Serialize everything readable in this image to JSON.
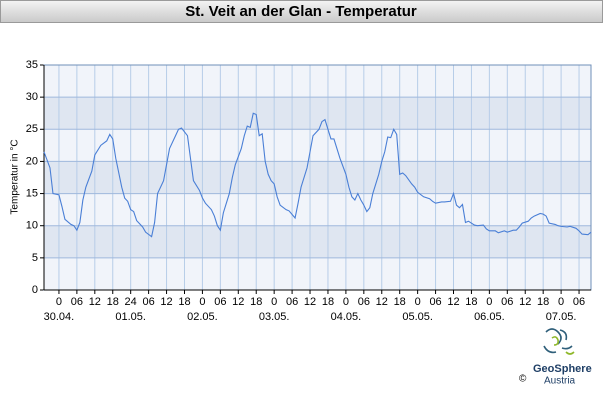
{
  "chart_data": {
    "type": "line",
    "title": "St. Veit an der Glan - Temperatur",
    "y_label": "Temperatur in °C",
    "ylim": [
      0,
      35
    ],
    "yticks": [
      0,
      5,
      10,
      15,
      20,
      25,
      30,
      35
    ],
    "xlim": [
      -5,
      178
    ],
    "xticks": [
      0,
      {
        "value": 6,
        "label": "06"
      },
      12,
      18,
      24,
      {
        "value": 30,
        "label": "06"
      },
      {
        "value": 36,
        "label": "12"
      },
      {
        "value": 42,
        "label": "18"
      },
      {
        "value": 48,
        "label": "0"
      },
      {
        "value": 54,
        "label": "06"
      },
      {
        "value": 60,
        "label": "12"
      },
      {
        "value": 66,
        "label": "18"
      },
      {
        "value": 72,
        "label": "0"
      },
      {
        "value": 78,
        "label": "06"
      },
      {
        "value": 84,
        "label": "12"
      },
      {
        "value": 90,
        "label": "18"
      },
      {
        "value": 96,
        "label": "0"
      },
      {
        "value": 102,
        "label": "06"
      },
      {
        "value": 108,
        "label": "12"
      },
      {
        "value": 114,
        "label": "18"
      },
      {
        "value": 120,
        "label": "0"
      },
      {
        "value": 126,
        "label": "06"
      },
      {
        "value": 132,
        "label": "12"
      },
      {
        "value": 138,
        "label": "18"
      },
      {
        "value": 144,
        "label": "0"
      },
      {
        "value": 150,
        "label": "06"
      },
      {
        "value": 156,
        "label": "12"
      },
      {
        "value": 162,
        "label": "18"
      },
      {
        "value": 168,
        "label": "0"
      },
      {
        "value": 174,
        "label": "06"
      }
    ],
    "x_date_labels": [
      {
        "value": 0,
        "label": "30.04."
      },
      {
        "value": 24,
        "label": "01.05."
      },
      {
        "value": 48,
        "label": "02.05."
      },
      {
        "value": 72,
        "label": "03.05."
      },
      {
        "value": 96,
        "label": "04.05."
      },
      {
        "value": 120,
        "label": "05.05."
      },
      {
        "value": 144,
        "label": "06.05."
      },
      {
        "value": 168,
        "label": "07.05."
      }
    ],
    "grid": true,
    "series": [
      {
        "color": "#4a7fd6",
        "x": [
          -5,
          -3,
          -2,
          0,
          1,
          2,
          4,
          5,
          6,
          7,
          8,
          9,
          11,
          12,
          14,
          16,
          17,
          18,
          19,
          21,
          22,
          23,
          24,
          25,
          26,
          28,
          29,
          31,
          32,
          33,
          35,
          36,
          37,
          39,
          40,
          41,
          43,
          44,
          45,
          47,
          48,
          49,
          51,
          52,
          53,
          54,
          55,
          57,
          58,
          59,
          61,
          62,
          63,
          64,
          65,
          66,
          67,
          68,
          69,
          70,
          71,
          72,
          73,
          74,
          76,
          77,
          79,
          80,
          81,
          83,
          84,
          85,
          87,
          88,
          89,
          90,
          91,
          92,
          93,
          94,
          96,
          97,
          98,
          99,
          100,
          101,
          102,
          103,
          104,
          105,
          107,
          108,
          109,
          110,
          111,
          112,
          113,
          114,
          115,
          116,
          118,
          119,
          120,
          122,
          124,
          125,
          126,
          128,
          129,
          131,
          132,
          133,
          134,
          135,
          136,
          137,
          139,
          140,
          142,
          143,
          144,
          146,
          147,
          149,
          150,
          152,
          153,
          154,
          155,
          157,
          158,
          159,
          161,
          162,
          163,
          164,
          166,
          167,
          168,
          170,
          171,
          173,
          174,
          175,
          177,
          178
        ],
        "values": [
          21.5,
          19,
          15,
          14.8,
          13,
          11,
          10.2,
          10,
          9.3,
          10.5,
          14,
          16,
          18.5,
          21,
          22.5,
          23.2,
          24.2,
          23.5,
          20.5,
          16,
          14.3,
          13.8,
          12.5,
          12.2,
          10.8,
          9.8,
          9,
          8.3,
          10.5,
          15,
          17,
          19.5,
          22,
          24,
          25,
          25.2,
          24,
          20.5,
          17,
          15.5,
          14.3,
          13.5,
          12.5,
          11.5,
          10,
          9.3,
          12,
          15,
          17.5,
          19.5,
          22,
          24,
          25.5,
          25.3,
          27.5,
          27.3,
          24,
          24.3,
          20,
          18,
          17,
          16.5,
          14.5,
          13.2,
          12.5,
          12.3,
          11.2,
          13.5,
          16,
          19,
          21.5,
          24,
          25,
          26.2,
          26.5,
          25,
          23.5,
          23.5,
          22,
          20.5,
          18,
          16,
          14.5,
          14,
          15,
          14,
          13.2,
          12.2,
          12.8,
          15,
          18,
          20,
          21.5,
          23.8,
          23.7,
          25,
          24.2,
          18,
          18.2,
          17.8,
          16.5,
          16,
          15.2,
          14.5,
          14.2,
          13.8,
          13.5,
          13.7,
          13.7,
          13.8,
          15,
          13.2,
          12.8,
          13.3,
          10.5,
          10.7,
          10.1,
          10,
          10.1,
          9.5,
          9.2,
          9.2,
          8.9,
          9.2,
          9,
          9.3,
          9.3,
          9.8,
          10.4,
          10.7,
          11.2,
          11.5,
          11.9,
          11.8,
          11.5,
          10.4,
          10.2,
          10,
          9.9,
          9.8,
          9.9,
          9.6,
          9.2,
          8.7,
          8.6,
          9
        ]
      }
    ]
  },
  "logo": {
    "name": "GeoSphere",
    "sub": "Austria",
    "copyright": "©"
  }
}
